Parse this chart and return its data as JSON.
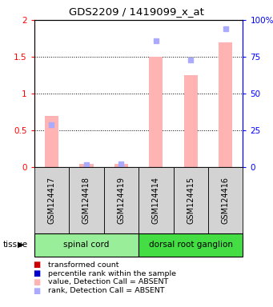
{
  "title": "GDS2209 / 1419099_x_at",
  "samples": [
    "GSM124417",
    "GSM124418",
    "GSM124419",
    "GSM124414",
    "GSM124415",
    "GSM124416"
  ],
  "bar_values_absent": [
    0.7,
    0.05,
    0.05,
    1.5,
    1.25,
    1.7
  ],
  "rank_values_absent": [
    0.575,
    0.04,
    0.05,
    1.72,
    1.46,
    1.88
  ],
  "bar_color_absent": "#ffb3b3",
  "rank_color_absent": "#aaaaff",
  "ylim_left": [
    0,
    2
  ],
  "ylim_right": [
    0,
    100
  ],
  "yticks_left": [
    0,
    0.5,
    1.0,
    1.5,
    2.0
  ],
  "ytick_labels_left": [
    "0",
    "0.5",
    "1",
    "1.5",
    "2"
  ],
  "yticks_right": [
    0,
    25,
    50,
    75,
    100
  ],
  "ytick_labels_right": [
    "0",
    "25",
    "50",
    "75",
    "100%"
  ],
  "tissues": [
    {
      "label": "spinal cord",
      "start": 0,
      "end": 3,
      "color": "#99ee99"
    },
    {
      "label": "dorsal root ganglion",
      "start": 3,
      "end": 6,
      "color": "#44dd44"
    }
  ],
  "tissue_label": "tissue",
  "legend_items": [
    {
      "label": "transformed count",
      "color": "#cc0000"
    },
    {
      "label": "percentile rank within the sample",
      "color": "#0000cc"
    },
    {
      "label": "value, Detection Call = ABSENT",
      "color": "#ffb3b3"
    },
    {
      "label": "rank, Detection Call = ABSENT",
      "color": "#aaaaff"
    }
  ]
}
